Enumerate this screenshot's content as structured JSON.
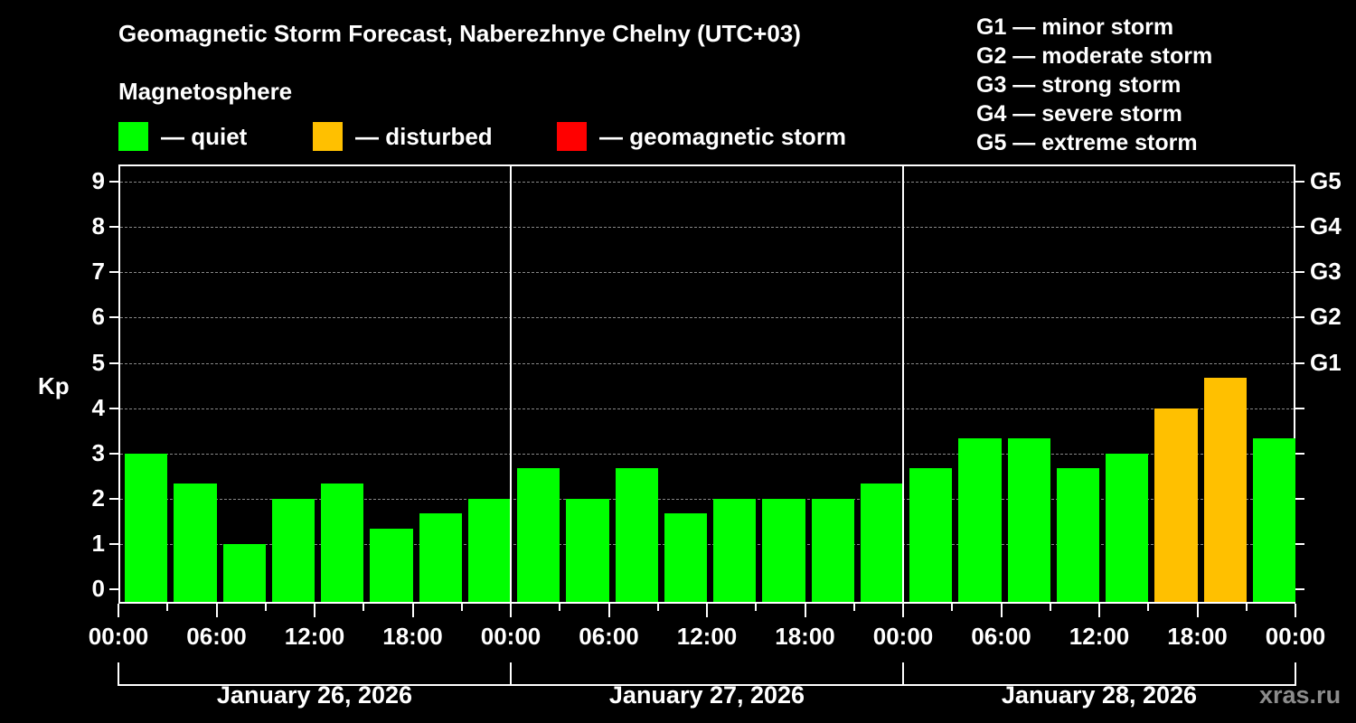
{
  "header": {
    "title": "Geomagnetic Storm Forecast, Naberezhnye Chelny (UTC+03)",
    "subtitle": "Magnetosphere"
  },
  "legend": {
    "items": [
      {
        "label": "— quiet",
        "color": "#00ff00"
      },
      {
        "label": "— disturbed",
        "color": "#ffc000"
      },
      {
        "label": "— geomagnetic storm",
        "color": "#ff0000"
      }
    ],
    "g_scale": [
      "G1 — minor storm",
      "G2 — moderate storm",
      "G3 — strong storm",
      "G4 — severe storm",
      "G5 — extreme storm"
    ]
  },
  "axes": {
    "y_label": "Kp",
    "y_ticks": [
      "0",
      "1",
      "2",
      "3",
      "4",
      "5",
      "6",
      "7",
      "8",
      "9"
    ],
    "right_ticks": [
      {
        "kp": 5,
        "label": "G1"
      },
      {
        "kp": 6,
        "label": "G2"
      },
      {
        "kp": 7,
        "label": "G3"
      },
      {
        "kp": 8,
        "label": "G4"
      },
      {
        "kp": 9,
        "label": "G5"
      }
    ],
    "x_ticks": [
      "00:00",
      "06:00",
      "12:00",
      "18:00",
      "00:00",
      "06:00",
      "12:00",
      "18:00",
      "00:00",
      "06:00",
      "12:00",
      "18:00",
      "00:00"
    ],
    "days": [
      "January 26, 2026",
      "January 27, 2026",
      "January 28, 2026"
    ]
  },
  "credit": "xras.ru",
  "chart_data": {
    "type": "bar",
    "title": "Geomagnetic Storm Forecast, Naberezhnye Chelny (UTC+03)",
    "xlabel": "",
    "ylabel": "Kp",
    "ylim": [
      0,
      9
    ],
    "grid": true,
    "bin_hours": 3,
    "categories": [
      "Jan 26 00-03",
      "Jan 26 03-06",
      "Jan 26 06-09",
      "Jan 26 09-12",
      "Jan 26 12-15",
      "Jan 26 15-18",
      "Jan 26 18-21",
      "Jan 26 21-24",
      "Jan 27 00-03",
      "Jan 27 03-06",
      "Jan 27 06-09",
      "Jan 27 09-12",
      "Jan 27 12-15",
      "Jan 27 15-18",
      "Jan 27 18-21",
      "Jan 27 21-24",
      "Jan 28 00-03",
      "Jan 28 03-06",
      "Jan 28 06-09",
      "Jan 28 09-12",
      "Jan 28 12-15",
      "Jan 28 15-18",
      "Jan 28 18-21",
      "Jan 28 21-24"
    ],
    "values": [
      3.0,
      2.33,
      1.0,
      2.0,
      2.33,
      1.33,
      1.67,
      2.0,
      2.67,
      2.0,
      2.67,
      1.67,
      2.0,
      2.0,
      2.0,
      2.33,
      2.67,
      3.33,
      3.33,
      2.67,
      3.0,
      4.0,
      4.67,
      3.33
    ],
    "status": [
      "quiet",
      "quiet",
      "quiet",
      "quiet",
      "quiet",
      "quiet",
      "quiet",
      "quiet",
      "quiet",
      "quiet",
      "quiet",
      "quiet",
      "quiet",
      "quiet",
      "quiet",
      "quiet",
      "quiet",
      "quiet",
      "quiet",
      "quiet",
      "quiet",
      "disturbed",
      "disturbed",
      "quiet"
    ],
    "colors": {
      "quiet": "#00ff00",
      "disturbed": "#ffc000",
      "storm": "#ff0000"
    },
    "legend": [
      "quiet",
      "disturbed",
      "geomagnetic storm"
    ],
    "right_axis": {
      "G1": 5,
      "G2": 6,
      "G3": 7,
      "G4": 8,
      "G5": 9
    },
    "x_tick_labels": [
      "00:00",
      "06:00",
      "12:00",
      "18:00",
      "00:00",
      "06:00",
      "12:00",
      "18:00",
      "00:00",
      "06:00",
      "12:00",
      "18:00",
      "00:00"
    ],
    "day_labels": [
      "January 26, 2026",
      "January 27, 2026",
      "January 28, 2026"
    ]
  }
}
